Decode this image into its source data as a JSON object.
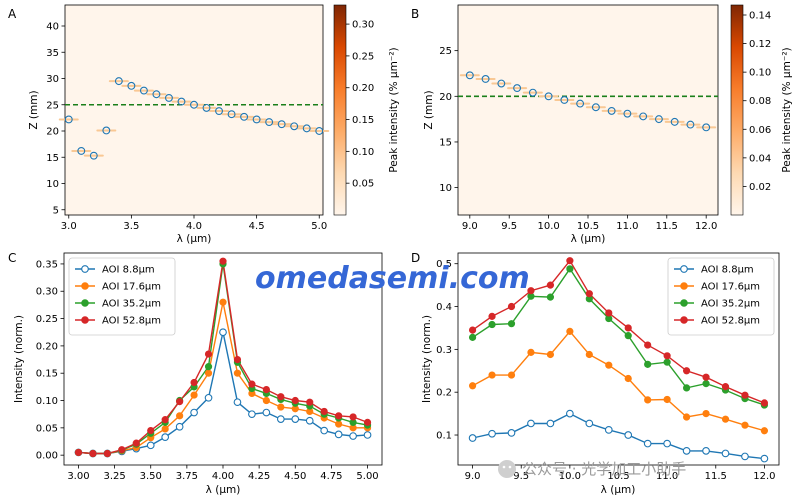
{
  "watermark": "omedasemi.com",
  "footer_watermark": "公众号 · 光学加工小助手",
  "chart_data": [
    {
      "panel": "A",
      "type": "scatter",
      "title": "",
      "xlabel": "λ (μm)",
      "ylabel": "Z (mm)",
      "xlim": [
        2.97,
        5.03
      ],
      "ylim": [
        4,
        44
      ],
      "xticks": [
        "3.0",
        "3.5",
        "4.0",
        "4.5",
        "5.0"
      ],
      "yticks": [
        "5",
        "10",
        "15",
        "20",
        "25",
        "30",
        "35",
        "40"
      ],
      "x": [
        3.0,
        3.1,
        3.2,
        3.3,
        3.4,
        3.5,
        3.6,
        3.7,
        3.8,
        3.9,
        4.0,
        4.1,
        4.2,
        4.3,
        4.4,
        4.5,
        4.6,
        4.7,
        4.8,
        4.9,
        5.0
      ],
      "y": [
        22.2,
        16.2,
        15.3,
        20.1,
        29.5,
        28.6,
        27.7,
        27.0,
        26.3,
        25.6,
        25.0,
        24.4,
        23.8,
        23.2,
        22.7,
        22.2,
        21.7,
        21.3,
        20.9,
        20.5,
        20.0
      ],
      "reference_line_y": 25,
      "colorbar": {
        "label": "Peak intensity (% μm⁻²)",
        "ticks": [
          "0.05",
          "0.10",
          "0.15",
          "0.20",
          "0.25",
          "0.30"
        ],
        "range": [
          0,
          0.33
        ]
      }
    },
    {
      "panel": "B",
      "type": "scatter",
      "title": "",
      "xlabel": "λ (μm)",
      "ylabel": "Z (mm)",
      "xlim": [
        8.85,
        12.15
      ],
      "ylim": [
        7,
        30
      ],
      "xticks": [
        "9.0",
        "9.5",
        "10.0",
        "10.5",
        "11.0",
        "11.5",
        "12.0"
      ],
      "yticks": [
        "10",
        "15",
        "20",
        "25"
      ],
      "x": [
        9.0,
        9.2,
        9.4,
        9.6,
        9.8,
        10.0,
        10.2,
        10.4,
        10.6,
        10.8,
        11.0,
        11.2,
        11.4,
        11.6,
        11.8,
        12.0
      ],
      "y": [
        22.3,
        21.9,
        21.4,
        20.9,
        20.4,
        20.0,
        19.6,
        19.2,
        18.8,
        18.4,
        18.1,
        17.8,
        17.5,
        17.2,
        16.9,
        16.6
      ],
      "reference_line_y": 20,
      "colorbar": {
        "label": "Peak intensity (% μm⁻²)",
        "ticks": [
          "0.02",
          "0.04",
          "0.06",
          "0.08",
          "0.10",
          "0.12",
          "0.14"
        ],
        "range": [
          0,
          0.147
        ]
      }
    },
    {
      "panel": "C",
      "type": "line",
      "title": "",
      "xlabel": "λ (μm)",
      "ylabel": "Intensity (norm.)",
      "xlim": [
        2.9,
        5.1
      ],
      "ylim": [
        -0.018,
        0.37
      ],
      "xticks": [
        "3.00",
        "3.25",
        "3.50",
        "3.75",
        "4.00",
        "4.25",
        "4.50",
        "4.75",
        "5.00"
      ],
      "yticks": [
        "0.00",
        "0.05",
        "0.10",
        "0.15",
        "0.20",
        "0.25",
        "0.30",
        "0.35"
      ],
      "legend": "top-left",
      "x": [
        3.0,
        3.1,
        3.2,
        3.3,
        3.4,
        3.5,
        3.6,
        3.7,
        3.8,
        3.9,
        4.0,
        4.1,
        4.2,
        4.3,
        4.4,
        4.5,
        4.6,
        4.7,
        4.8,
        4.9,
        5.0
      ],
      "series": [
        {
          "name": "AOI 8.8μm",
          "color": "#1f77b4",
          "marker": "open",
          "values": [
            0.005,
            0.003,
            0.003,
            0.007,
            0.012,
            0.018,
            0.033,
            0.052,
            0.078,
            0.105,
            0.225,
            0.097,
            0.075,
            0.078,
            0.066,
            0.066,
            0.063,
            0.045,
            0.038,
            0.035,
            0.037
          ]
        },
        {
          "name": "AOI 17.6μm",
          "color": "#ff7f0e",
          "marker": "filled",
          "values": [
            0.005,
            0.003,
            0.003,
            0.008,
            0.014,
            0.032,
            0.048,
            0.072,
            0.11,
            0.15,
            0.28,
            0.15,
            0.113,
            0.1,
            0.088,
            0.085,
            0.08,
            0.068,
            0.057,
            0.05,
            0.05
          ]
        },
        {
          "name": "AOI 35.2μm",
          "color": "#2ca02c",
          "marker": "filled",
          "values": [
            0.005,
            0.003,
            0.003,
            0.009,
            0.02,
            0.04,
            0.06,
            0.1,
            0.125,
            0.162,
            0.35,
            0.17,
            0.122,
            0.113,
            0.102,
            0.095,
            0.09,
            0.075,
            0.068,
            0.06,
            0.055
          ]
        },
        {
          "name": "AOI 52.8μm",
          "color": "#d62728",
          "marker": "filled",
          "values": [
            0.005,
            0.003,
            0.003,
            0.01,
            0.022,
            0.045,
            0.065,
            0.098,
            0.133,
            0.185,
            0.355,
            0.175,
            0.13,
            0.12,
            0.107,
            0.1,
            0.097,
            0.08,
            0.072,
            0.07,
            0.06
          ]
        }
      ]
    },
    {
      "panel": "D",
      "type": "line",
      "title": "",
      "xlabel": "λ (μm)",
      "ylabel": "Intensity (norm.)",
      "xlim": [
        8.85,
        12.15
      ],
      "ylim": [
        0.03,
        0.525
      ],
      "xticks": [
        "9.0",
        "9.5",
        "10.0",
        "10.5",
        "11.0",
        "11.5",
        "12.0"
      ],
      "yticks": [
        "0.1",
        "0.2",
        "0.3",
        "0.4",
        "0.5"
      ],
      "legend": "top-right",
      "x": [
        9.0,
        9.2,
        9.4,
        9.6,
        9.8,
        10.0,
        10.2,
        10.4,
        10.6,
        10.8,
        11.0,
        11.2,
        11.4,
        11.6,
        11.8,
        12.0
      ],
      "series": [
        {
          "name": "AOI 8.8μm",
          "color": "#1f77b4",
          "marker": "open",
          "values": [
            0.093,
            0.103,
            0.105,
            0.127,
            0.127,
            0.15,
            0.127,
            0.112,
            0.1,
            0.08,
            0.08,
            0.063,
            0.063,
            0.057,
            0.05,
            0.045
          ]
        },
        {
          "name": "AOI 17.6μm",
          "color": "#ff7f0e",
          "marker": "filled",
          "values": [
            0.215,
            0.24,
            0.24,
            0.293,
            0.288,
            0.342,
            0.288,
            0.263,
            0.232,
            0.182,
            0.183,
            0.142,
            0.15,
            0.137,
            0.123,
            0.11
          ]
        },
        {
          "name": "AOI 35.2μm",
          "color": "#2ca02c",
          "marker": "filled",
          "values": [
            0.328,
            0.358,
            0.36,
            0.424,
            0.422,
            0.488,
            0.418,
            0.372,
            0.332,
            0.265,
            0.27,
            0.21,
            0.22,
            0.205,
            0.185,
            0.17
          ]
        },
        {
          "name": "AOI 52.8μm",
          "color": "#d62728",
          "marker": "filled",
          "values": [
            0.345,
            0.377,
            0.4,
            0.437,
            0.45,
            0.507,
            0.43,
            0.385,
            0.35,
            0.31,
            0.285,
            0.25,
            0.235,
            0.213,
            0.193,
            0.175
          ]
        }
      ]
    }
  ]
}
